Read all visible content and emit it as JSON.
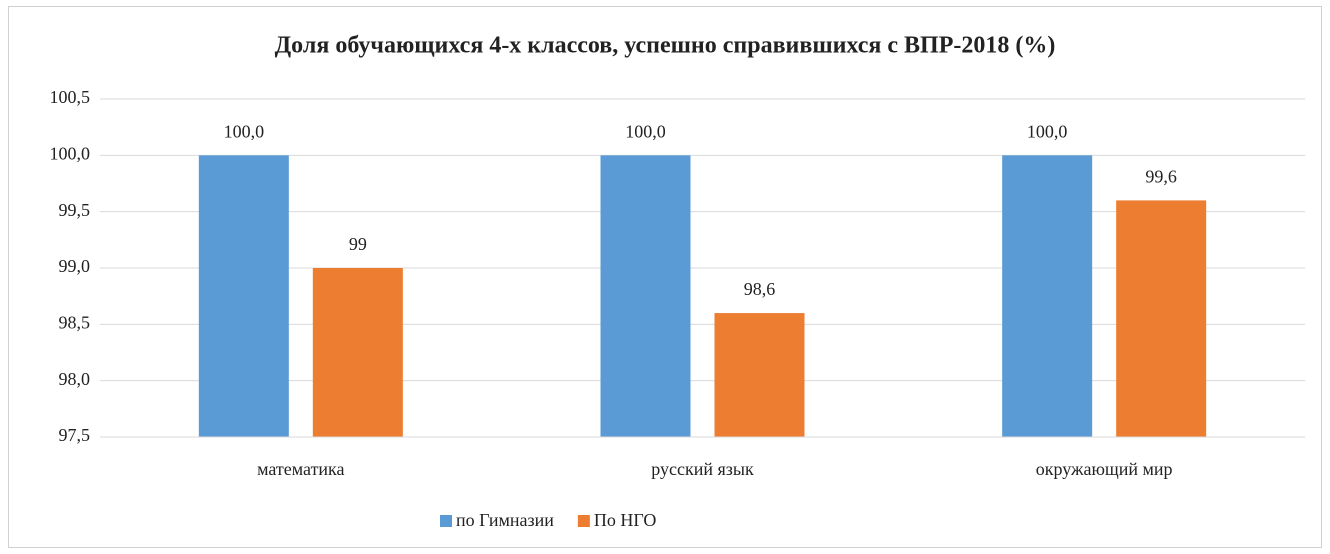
{
  "chart_data": {
    "type": "bar",
    "title": "Доля обучающихся 4-х классов, успешно справившихся с ВПР-2018 (%)",
    "categories": [
      "математика",
      "русский язык",
      "окружающий мир"
    ],
    "series": [
      {
        "name": "по Гимназии",
        "color": "#5b9bd5",
        "values": [
          100,
          100,
          100
        ],
        "value_labels": [
          "100,0",
          "100,0",
          "100,0"
        ]
      },
      {
        "name": "По НГО",
        "color": "#ed7d31",
        "values": [
          99,
          98.6,
          99.6
        ],
        "value_labels": [
          "99",
          "98,6",
          "99,6"
        ]
      }
    ],
    "ylim": [
      97.5,
      100.5
    ],
    "yticks": [
      {
        "value": 97.5,
        "label": "97,5"
      },
      {
        "value": 98,
        "label": "98,0"
      },
      {
        "value": 98.5,
        "label": "98,5"
      },
      {
        "value": 99,
        "label": "99,0"
      },
      {
        "value": 99.5,
        "label": "99,5"
      },
      {
        "value": 100,
        "label": "100,0"
      },
      {
        "value": 100.5,
        "label": "100,5"
      }
    ],
    "grid": true,
    "legend": "bottom"
  }
}
